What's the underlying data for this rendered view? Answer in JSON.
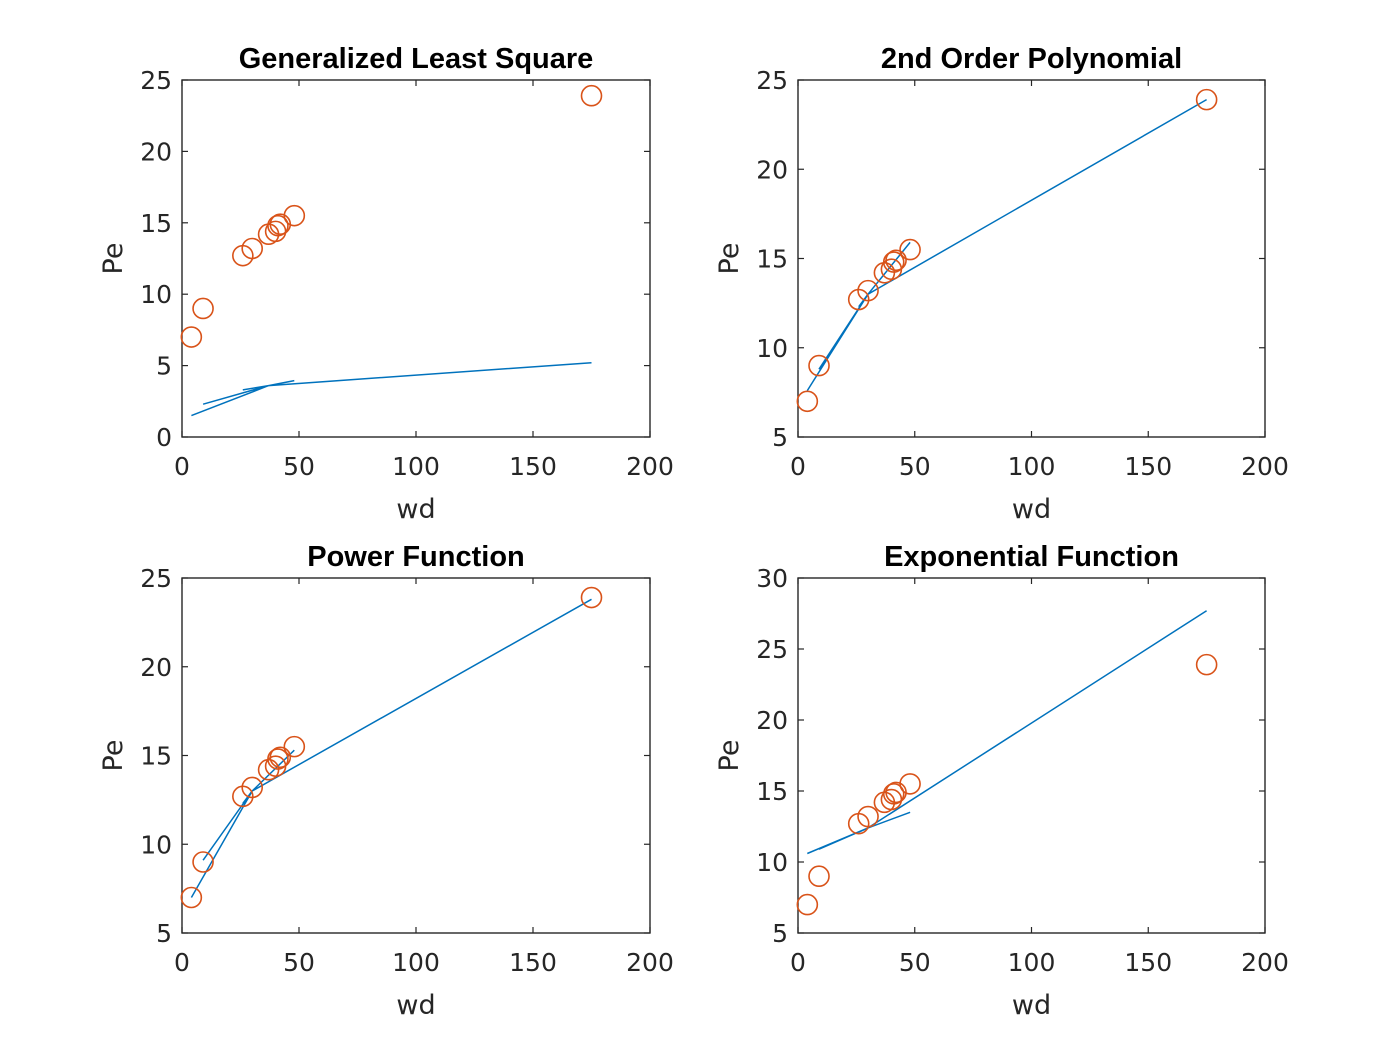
{
  "colors": {
    "fit": "#0072BD",
    "points": "#D95319",
    "axes": "#262626"
  },
  "chart_data": [
    {
      "type": "scatter",
      "title": "Generalized Least Square",
      "xlabel": "wd",
      "ylabel": "Pe",
      "xlim": [
        0,
        200
      ],
      "ylim": [
        0,
        25
      ],
      "xticks": [
        0,
        50,
        100,
        150,
        200
      ],
      "yticks": [
        0,
        5,
        10,
        15,
        20,
        25
      ],
      "grid": false,
      "series": [
        {
          "kind": "markers",
          "x": [
            4,
            9,
            26,
            30,
            37,
            40,
            41,
            42,
            48,
            175
          ],
          "y": [
            7,
            9,
            12.7,
            13.2,
            14.2,
            14.4,
            14.8,
            14.9,
            15.5,
            23.9
          ]
        },
        {
          "kind": "line",
          "x": [
            4,
            37,
            9,
            37,
            26,
            37,
            48,
            37,
            175
          ],
          "y": [
            1.5,
            3.6,
            2.3,
            3.6,
            3.3,
            3.6,
            3.95,
            3.6,
            5.2
          ]
        }
      ]
    },
    {
      "type": "scatter",
      "title": "2nd Order Polynomial",
      "xlabel": "wd",
      "ylabel": "Pe",
      "xlim": [
        0,
        200
      ],
      "ylim": [
        5,
        25
      ],
      "xticks": [
        0,
        50,
        100,
        150,
        200
      ],
      "yticks": [
        5,
        10,
        15,
        20,
        25
      ],
      "grid": false,
      "series": [
        {
          "kind": "markers",
          "x": [
            4,
            9,
            26,
            30,
            37,
            40,
            41,
            42,
            48,
            175
          ],
          "y": [
            7,
            9,
            12.7,
            13.2,
            14.2,
            14.4,
            14.8,
            14.9,
            15.5,
            23.9
          ]
        },
        {
          "kind": "line",
          "x": [
            4,
            30,
            9,
            30,
            26,
            30,
            48,
            30,
            175
          ],
          "y": [
            7.6,
            13.0,
            8.8,
            13.0,
            12.3,
            13.0,
            15.9,
            13.0,
            23.9
          ]
        }
      ]
    },
    {
      "type": "scatter",
      "title": "Power Function",
      "xlabel": "wd",
      "ylabel": "Pe",
      "xlim": [
        0,
        200
      ],
      "ylim": [
        5,
        25
      ],
      "xticks": [
        0,
        50,
        100,
        150,
        200
      ],
      "yticks": [
        5,
        10,
        15,
        20,
        25
      ],
      "grid": false,
      "series": [
        {
          "kind": "markers",
          "x": [
            4,
            9,
            26,
            30,
            37,
            40,
            41,
            42,
            48,
            175
          ],
          "y": [
            7,
            9,
            12.7,
            13.2,
            14.2,
            14.4,
            14.8,
            14.9,
            15.5,
            23.9
          ]
        },
        {
          "kind": "line",
          "x": [
            4,
            30,
            9,
            30,
            26,
            30,
            48,
            30,
            175
          ],
          "y": [
            7.0,
            13.0,
            9.1,
            13.0,
            12.3,
            13.0,
            15.3,
            13.0,
            23.8
          ]
        }
      ]
    },
    {
      "type": "scatter",
      "title": "Exponential Function",
      "xlabel": "wd",
      "ylabel": "Pe",
      "xlim": [
        0,
        200
      ],
      "ylim": [
        5,
        30
      ],
      "xticks": [
        0,
        50,
        100,
        150,
        200
      ],
      "yticks": [
        5,
        10,
        15,
        20,
        25,
        30
      ],
      "grid": false,
      "series": [
        {
          "kind": "markers",
          "x": [
            4,
            9,
            26,
            30,
            37,
            40,
            41,
            42,
            48,
            175
          ],
          "y": [
            7,
            9,
            12.7,
            13.2,
            14.2,
            14.4,
            14.8,
            14.9,
            15.5,
            23.9
          ]
        },
        {
          "kind": "line",
          "x": [
            4,
            30,
            9,
            30,
            26,
            30,
            48,
            30,
            175
          ],
          "y": [
            10.6,
            12.4,
            10.9,
            12.4,
            12.1,
            12.4,
            13.5,
            12.4,
            27.7
          ]
        }
      ]
    }
  ]
}
